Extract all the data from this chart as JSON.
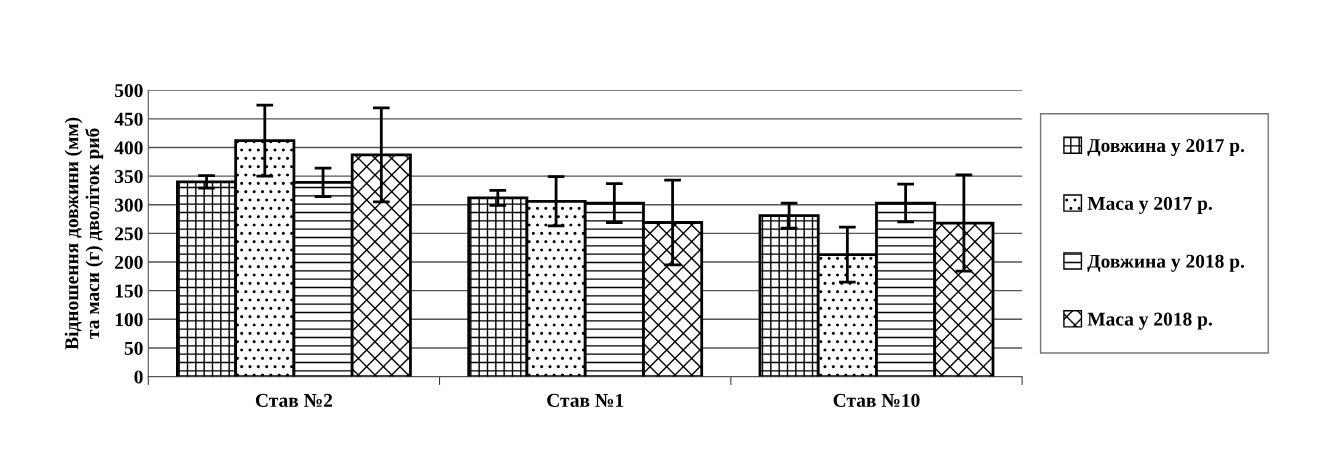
{
  "chart_data": {
    "type": "bar",
    "ylabel": "Відношення довжини (мм)\nта маси (г) дволіток риб",
    "categories": [
      "Став №2",
      "Став №1",
      "Став №10"
    ],
    "series": [
      {
        "name": "Довжина у 2017 р.",
        "color": "#000000",
        "values": [
          340,
          312,
          281
        ],
        "errors": [
          11,
          13,
          22
        ]
      },
      {
        "name": "Маса у 2017 р.",
        "color": "#000000",
        "values": [
          412,
          306,
          213
        ],
        "errors": [
          62,
          43,
          48
        ]
      },
      {
        "name": "Довжина у 2018 р.",
        "color": "#000000",
        "values": [
          339,
          303,
          303
        ],
        "errors": [
          25,
          34,
          33
        ]
      },
      {
        "name": "Маса у 2018 р.",
        "color": "#000000",
        "values": [
          387,
          269,
          268
        ],
        "errors": [
          82,
          74,
          84
        ]
      }
    ],
    "ylim": [
      0,
      500
    ],
    "yticks": [
      0,
      50,
      100,
      150,
      200,
      250,
      300,
      350,
      400,
      450,
      500
    ],
    "grid": "y",
    "legend": "right"
  }
}
